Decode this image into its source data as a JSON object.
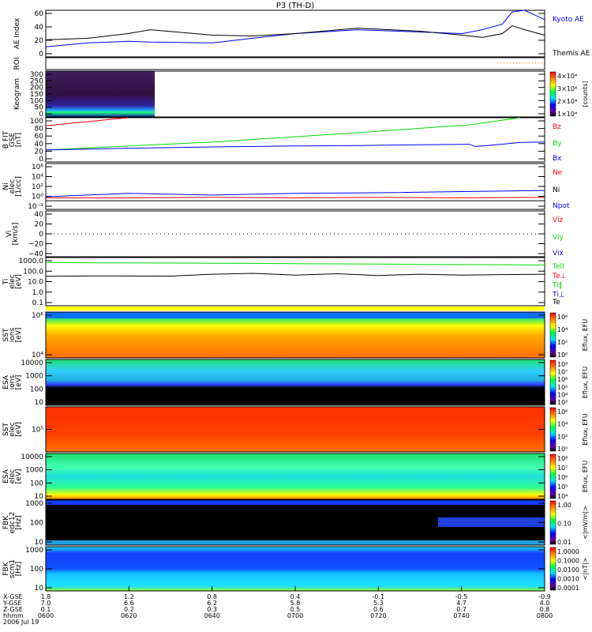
{
  "title": "P3 (TH-D)",
  "chart_data": [
    {
      "type": "line",
      "panel": "ae",
      "ylabel": "AE Index",
      "ylim": [
        0,
        60
      ],
      "yticks": [
        "60",
        "40",
        "20",
        "0"
      ],
      "x_hours": [
        6.0,
        6.17,
        6.33,
        6.42,
        6.67,
        6.83,
        7.0,
        7.25,
        7.5,
        7.67,
        7.75,
        7.83,
        7.87,
        7.92,
        8.0
      ],
      "series": [
        {
          "name": "Kyoto AE",
          "color": "#0000ff",
          "values": [
            13,
            18,
            20,
            19,
            18,
            24,
            30,
            35,
            32,
            30,
            35,
            42,
            58,
            60,
            48
          ]
        },
        {
          "name": "Themis AE",
          "color": "#000000",
          "values": [
            22,
            24,
            30,
            35,
            28,
            27,
            30,
            37,
            33,
            28,
            25,
            30,
            40,
            35,
            28
          ]
        }
      ]
    },
    {
      "type": "line",
      "panel": "roi",
      "ylabel": "ROI"
    },
    {
      "type": "heatmap",
      "panel": "keogram",
      "ylabel": "Keogram",
      "ylim": [
        0,
        300
      ],
      "yticks": [
        "300",
        "250",
        "200",
        "150",
        "100",
        "50",
        "0"
      ],
      "colorbar": {
        "ticks": [
          "4×10⁴",
          "3×10⁴",
          "2×10⁴",
          "1×10⁴"
        ],
        "label": "[counts]"
      }
    },
    {
      "type": "line",
      "panel": "bfit",
      "ylabel": "B FIT",
      "units": [
        "GSE",
        "[nT]"
      ],
      "ylim": [
        0,
        100
      ],
      "yticks": [
        "100",
        "80",
        "60",
        "40",
        "20",
        "0"
      ],
      "x_hours": [
        6.0,
        6.33,
        6.67,
        7.0,
        7.25,
        7.5,
        7.7,
        7.72,
        7.75,
        7.9,
        8.0
      ],
      "series": [
        {
          "name": "Bz",
          "color": "#ff0000",
          "values": [
            82,
            100,
            null,
            null,
            null,
            null,
            null,
            null,
            null,
            null,
            null
          ]
        },
        {
          "name": "By",
          "color": "#00dd00",
          "values": [
            27,
            36,
            45,
            57,
            66,
            76,
            84,
            85,
            88,
            100,
            null
          ]
        },
        {
          "name": "Bx",
          "color": "#0000ff",
          "values": [
            27,
            31,
            34,
            36,
            37,
            39,
            40,
            35,
            36,
            44,
            45
          ]
        }
      ]
    },
    {
      "type": "line",
      "panel": "ni",
      "ylabel": "Ni",
      "units": [
        "elec",
        "[1/cc]"
      ],
      "log": true,
      "ylim": [
        -2,
        6
      ],
      "yticks": [
        "10⁶",
        "10⁴",
        "10²",
        "10⁰",
        "10⁻¹"
      ],
      "x_hours": [
        6.0,
        6.33,
        6.67,
        7.0,
        7.33,
        7.67,
        8.0
      ],
      "series": [
        {
          "name": "Ne",
          "color": "#ff0000",
          "values": [
            0.0,
            0.0,
            0.1,
            0.0,
            0.1,
            0.0,
            0.1
          ]
        },
        {
          "name": "Ni",
          "color": "#000000",
          "values": [
            -0.5,
            -0.5,
            -0.5,
            -0.5,
            -0.5,
            -0.5,
            -0.5
          ]
        },
        {
          "name": "Npot",
          "color": "#0000ff",
          "values": [
            0.2,
            0.8,
            0.5,
            0.8,
            0.9,
            1.1,
            1.3
          ]
        }
      ]
    },
    {
      "type": "line",
      "panel": "vi",
      "ylabel": "Vi",
      "units": [
        "[km/s]"
      ],
      "ylim": [
        -50,
        50
      ],
      "yticks": [
        "40",
        "20",
        "0",
        "−20",
        "−40"
      ],
      "series": [
        {
          "name": "Viz",
          "color": "#ff0000"
        },
        {
          "name": "Viy",
          "color": "#00dd00"
        },
        {
          "name": "Vix",
          "color": "#0000ff"
        }
      ]
    },
    {
      "type": "line",
      "panel": "ti",
      "ylabel": "Ti",
      "units": [
        "elec",
        "[eV]"
      ],
      "log": true,
      "ylim": [
        -1.5,
        4
      ],
      "yticks": [
        "1000.0",
        "100.0",
        "10.0",
        "1.0",
        "0.1"
      ],
      "x_hours": [
        6.0,
        6.2,
        6.5,
        6.67,
        6.83,
        7.0,
        7.17,
        7.33,
        7.5,
        7.67,
        7.83,
        8.0
      ],
      "series": [
        {
          "name": "Tell",
          "color": "#00dd00",
          "values": [
            3.45,
            3.4,
            3.38,
            3.35,
            3.33,
            3.3,
            3.28,
            3.25,
            3.22,
            3.2,
            3.18,
            3.15
          ]
        },
        {
          "name": "Te⊥",
          "color": "#ff0000",
          "values": []
        },
        {
          "name": "Ti‖",
          "color": "#00dd00",
          "values": []
        },
        {
          "name": "Ti⊥",
          "color": "#0000ff",
          "values": []
        },
        {
          "name": "Te",
          "color": "#000000",
          "values": [
            1.85,
            1.9,
            1.88,
            2.1,
            2.2,
            2.0,
            2.15,
            1.95,
            2.1,
            2.0,
            2.05,
            2.1
          ]
        }
      ]
    },
    {
      "type": "heatmap",
      "panel": "sst-ions",
      "ylabel": "SST",
      "units": [
        "ions",
        "[eV]"
      ],
      "yticks": [
        "10⁶",
        "10⁴"
      ],
      "colorbar": {
        "ticks": [
          "10⁶",
          "10⁴",
          "10²",
          "10⁰"
        ],
        "label": "Eflux, EFU"
      }
    },
    {
      "type": "heatmap",
      "panel": "esa-ions",
      "ylabel": "ESA",
      "units": [
        "ions",
        "[eV]"
      ],
      "yticks": [
        "10000",
        "1000",
        "100",
        "10"
      ],
      "colorbar": {
        "ticks": [
          "10⁸",
          "10⁷",
          "10⁶",
          "10⁵",
          "10⁴",
          "10³"
        ],
        "label": "Eflux, EFU"
      }
    },
    {
      "type": "heatmap",
      "panel": "sst-elec",
      "ylabel": "SST",
      "units": [
        "elec",
        "[eV]"
      ],
      "yticks": [
        "10⁵"
      ],
      "colorbar": {
        "ticks": [
          "10⁶",
          "10⁴",
          "10²",
          "10⁰"
        ],
        "label": "Eflux, EFU"
      }
    },
    {
      "type": "heatmap",
      "panel": "esa-elec",
      "ylabel": "ESA",
      "units": [
        "elec",
        "[eV]"
      ],
      "yticks": [
        "10000",
        "1000",
        "100",
        "10"
      ],
      "colorbar": {
        "ticks": [
          "10⁸",
          "10⁷",
          "10⁶",
          "10⁵",
          "10⁴"
        ],
        "label": "Eflux, EFU"
      }
    },
    {
      "type": "heatmap",
      "panel": "fbk-edc12",
      "ylabel": "FBK",
      "units": [
        "edc12",
        "[Hz]"
      ],
      "yticks": [
        "1000",
        "100",
        "10"
      ],
      "colorbar": {
        "ticks": [
          "1.00",
          "0.10",
          "0.01"
        ],
        "label": "<|mV/m|>"
      }
    },
    {
      "type": "heatmap",
      "panel": "fbk-scm1",
      "ylabel": "FBK",
      "units": [
        "scm1",
        "[Hz]"
      ],
      "yticks": [
        "1000",
        "100",
        "10"
      ],
      "colorbar": {
        "ticks": [
          "1.0000",
          "0.1000",
          "0.0100",
          "0.0010",
          "0.0001"
        ],
        "label": "<|nT|>"
      }
    }
  ],
  "xaxis": {
    "row_labels": [
      "X-GSE",
      "Y-GSE",
      "Z-GSE",
      "hhmm"
    ],
    "date": "2006 Jul 19",
    "columns": [
      {
        "x": "1.8",
        "y": "7.0",
        "z": "0.1",
        "t": "0600"
      },
      {
        "x": "1.2",
        "y": "6.6",
        "z": "0.2",
        "t": "0620"
      },
      {
        "x": "0.8",
        "y": "6.2",
        "z": "0.3",
        "t": "0640"
      },
      {
        "x": "0.4",
        "y": "5.8",
        "z": "0.5",
        "t": "0700"
      },
      {
        "x": "-0.1",
        "y": "5.3",
        "z": "0.6",
        "t": "0720"
      },
      {
        "x": "-0.5",
        "y": "4.7",
        "z": "0.7",
        "t": "0740"
      },
      {
        "x": "-0.9",
        "y": "4.0",
        "z": "0.8",
        "t": "0800"
      }
    ]
  }
}
